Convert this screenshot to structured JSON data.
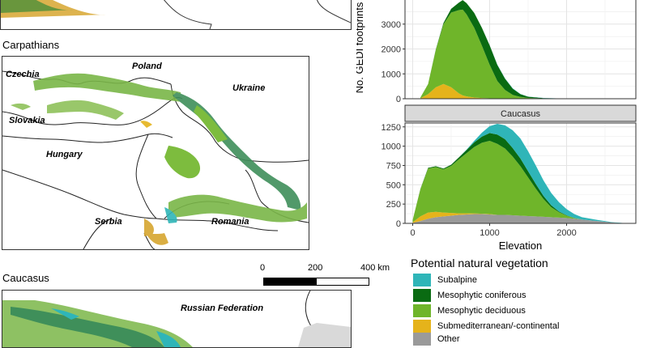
{
  "maps": {
    "carpathians": {
      "title": "Carpathians",
      "countries": [
        "Poland",
        "Czechia",
        "Ukraine",
        "Slovakia",
        "Hungary",
        "Serbia",
        "Romania"
      ]
    },
    "caucasus": {
      "title": "Caucasus",
      "countries": [
        "Russian Federation"
      ]
    }
  },
  "scale_bar": {
    "labels": [
      "0",
      "200",
      "400 km"
    ]
  },
  "legend": {
    "title": "Potential natural vegetation",
    "items": [
      {
        "label": "Subalpine",
        "color": "#2fb5b8"
      },
      {
        "label": "Mesophytic coniferous",
        "color": "#0a6b12"
      },
      {
        "label": "Mesophytic deciduous",
        "color": "#6fb52a"
      },
      {
        "label": "Submediterranean/-continental",
        "color": "#e5b31b"
      },
      {
        "label": "Other",
        "color": "#9a9a9a"
      }
    ]
  },
  "chart_data": [
    {
      "type": "area",
      "stacked": true,
      "panel": "top",
      "ylabel": "No. GEDI footprints",
      "xlim": [
        -100,
        2900
      ],
      "ylim": [
        0,
        4100
      ],
      "yticks": [
        0,
        1000,
        2000,
        3000,
        4000
      ],
      "x": [
        100,
        200,
        300,
        400,
        500,
        600,
        650,
        700,
        800,
        900,
        1000,
        1100,
        1200,
        1300,
        1400,
        1500,
        1700,
        2000,
        2500,
        2800
      ],
      "series": [
        {
          "name": "Other",
          "values": [
            0,
            5,
            10,
            15,
            15,
            15,
            15,
            12,
            10,
            8,
            6,
            5,
            4,
            3,
            2,
            2,
            1,
            0,
            0,
            0
          ]
        },
        {
          "name": "Submediterranean/-continental",
          "values": [
            20,
            180,
            450,
            580,
            450,
            200,
            120,
            80,
            40,
            20,
            10,
            5,
            0,
            0,
            0,
            0,
            0,
            0,
            0,
            0
          ]
        },
        {
          "name": "Mesophytic deciduous",
          "values": [
            30,
            400,
            1500,
            2400,
            3000,
            3350,
            3450,
            3300,
            2800,
            2100,
            1350,
            700,
            350,
            150,
            70,
            30,
            10,
            0,
            0,
            0
          ]
        },
        {
          "name": "Mesophytic coniferous",
          "values": [
            0,
            5,
            20,
            50,
            150,
            300,
            380,
            450,
            600,
            720,
            780,
            650,
            450,
            250,
            110,
            50,
            15,
            5,
            0,
            0
          ]
        },
        {
          "name": "Subalpine",
          "values": [
            0,
            0,
            0,
            0,
            0,
            0,
            0,
            0,
            0,
            0,
            5,
            10,
            15,
            15,
            10,
            5,
            5,
            0,
            0,
            0
          ]
        }
      ]
    },
    {
      "type": "area",
      "stacked": true,
      "panel": "bottom",
      "title": "Caucasus",
      "xlabel": "Elevation",
      "xlim": [
        -100,
        2900
      ],
      "xticks": [
        0,
        1000,
        2000
      ],
      "ylim": [
        0,
        1300
      ],
      "yticks": [
        0,
        250,
        500,
        750,
        1000,
        1250
      ],
      "x": [
        0,
        100,
        200,
        300,
        400,
        500,
        600,
        700,
        800,
        900,
        1000,
        1100,
        1200,
        1300,
        1400,
        1500,
        1600,
        1700,
        1800,
        1900,
        2000,
        2100,
        2200,
        2400,
        2600,
        2800
      ],
      "series": [
        {
          "name": "Other",
          "values": [
            5,
            30,
            60,
            80,
            90,
            100,
            110,
            115,
            120,
            120,
            115,
            110,
            110,
            105,
            100,
            95,
            90,
            85,
            80,
            75,
            70,
            60,
            50,
            30,
            10,
            0
          ]
        },
        {
          "name": "Submediterranean/-continental",
          "values": [
            10,
            60,
            80,
            70,
            50,
            35,
            20,
            15,
            10,
            5,
            5,
            0,
            0,
            0,
            0,
            0,
            0,
            0,
            0,
            0,
            0,
            0,
            0,
            0,
            0,
            0
          ]
        },
        {
          "name": "Mesophytic deciduous",
          "values": [
            30,
            350,
            570,
            580,
            560,
            610,
            700,
            780,
            860,
            920,
            950,
            920,
            860,
            760,
            640,
            500,
            360,
            230,
            130,
            70,
            30,
            10,
            0,
            0,
            0,
            0
          ]
        },
        {
          "name": "Mesophytic coniferous",
          "values": [
            0,
            5,
            10,
            10,
            10,
            15,
            25,
            40,
            60,
            80,
            100,
            120,
            120,
            110,
            100,
            80,
            60,
            40,
            25,
            10,
            5,
            0,
            0,
            0,
            0,
            0
          ]
        },
        {
          "name": "Subalpine",
          "values": [
            0,
            0,
            0,
            0,
            0,
            0,
            0,
            5,
            20,
            50,
            90,
            140,
            180,
            230,
            260,
            260,
            240,
            200,
            160,
            120,
            80,
            50,
            30,
            15,
            5,
            0
          ]
        }
      ]
    }
  ]
}
